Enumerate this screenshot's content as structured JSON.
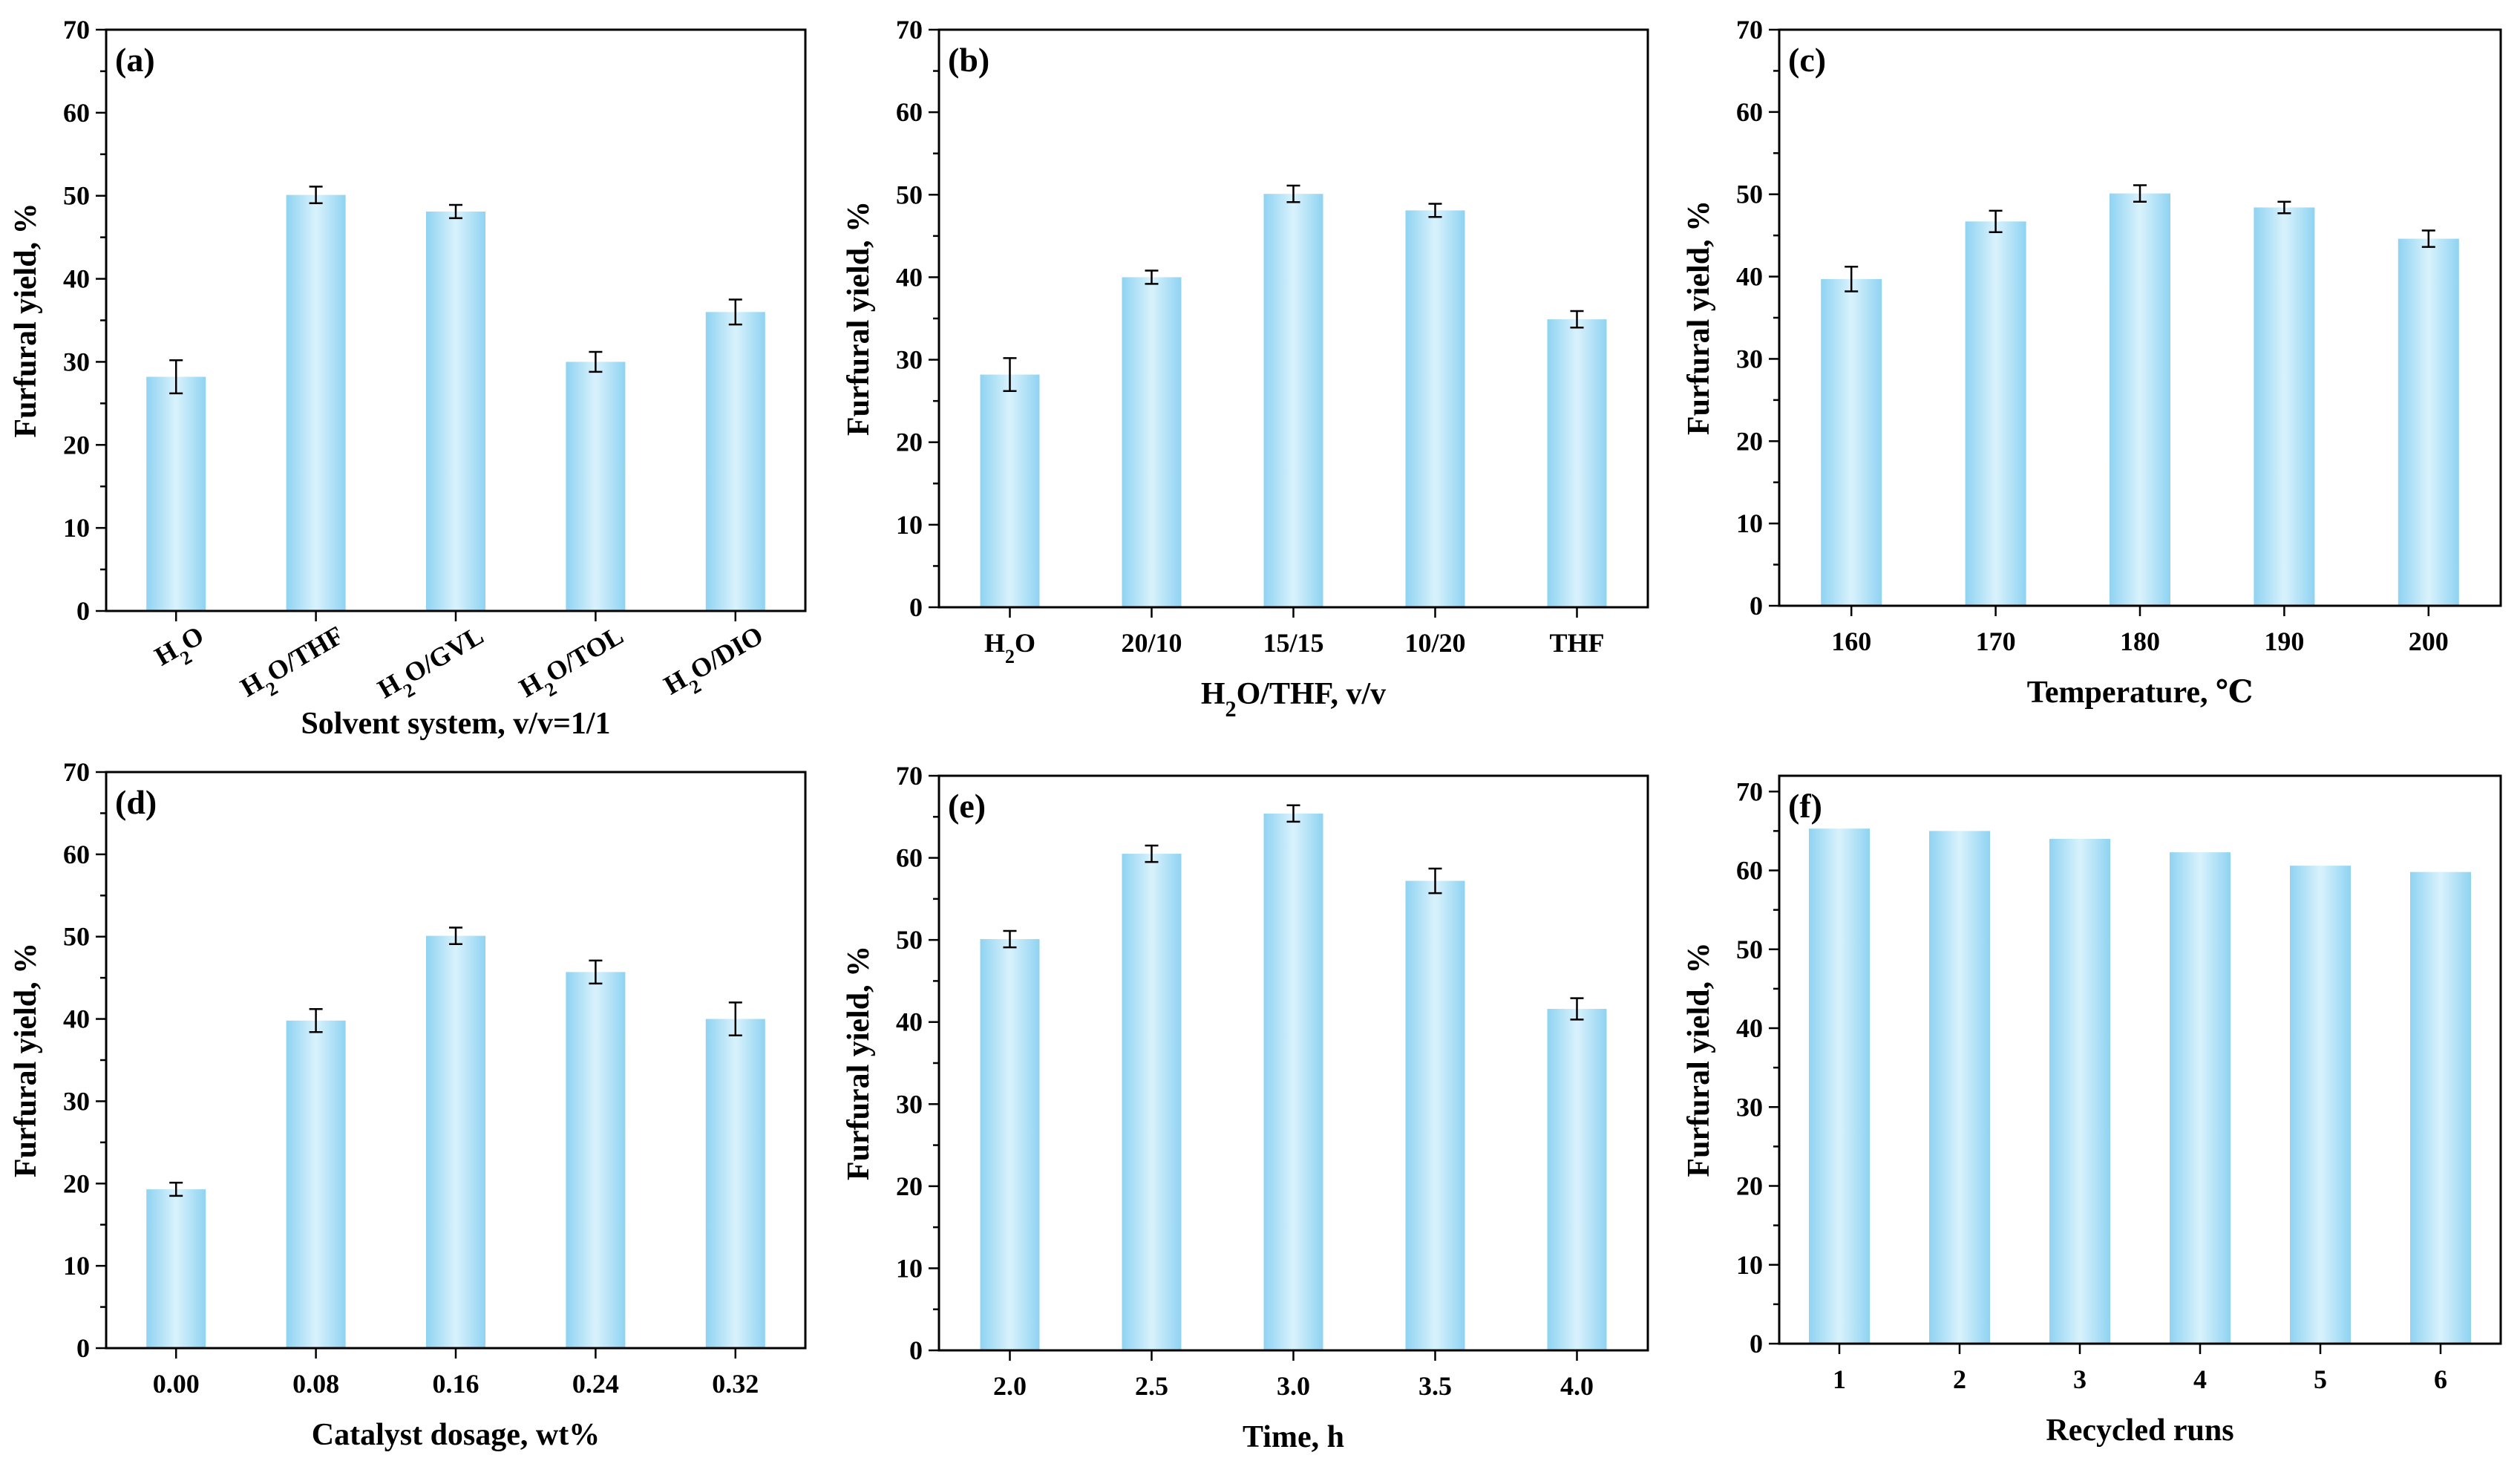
{
  "chart_data": [
    {
      "panel_label": "(a)",
      "type": "bar",
      "categories": [
        {
          "main": "H",
          "sub": "2",
          "rest": "O"
        },
        {
          "main": "H",
          "sub": "2",
          "rest": "O/THF"
        },
        {
          "main": "H",
          "sub": "2",
          "rest": "O/GVL"
        },
        {
          "main": "H",
          "sub": "2",
          "rest": "O/TOL"
        },
        {
          "main": "H",
          "sub": "2",
          "rest": "O/DIO"
        }
      ],
      "values": [
        28.2,
        50.1,
        48.1,
        30.0,
        36.0
      ],
      "errors": [
        2.0,
        1.0,
        0.8,
        1.2,
        1.5
      ],
      "xlabel": "Solvent system, v/v=1/1",
      "ylabel": "Furfural yield, %",
      "ylim": [
        0,
        70
      ],
      "yticks": [
        "0",
        "10",
        "20",
        "30",
        "40",
        "50",
        "60",
        "70"
      ],
      "grid": false
    },
    {
      "panel_label": "(b)",
      "type": "bar",
      "categories": [
        {
          "main": "H",
          "sub": "2",
          "rest": "O"
        },
        {
          "main": "20/10",
          "sub": "",
          "rest": ""
        },
        {
          "main": "15/15",
          "sub": "",
          "rest": ""
        },
        {
          "main": "10/20",
          "sub": "",
          "rest": ""
        },
        {
          "main": "THF",
          "sub": "",
          "rest": ""
        }
      ],
      "values": [
        28.2,
        40.0,
        50.1,
        48.1,
        34.9
      ],
      "errors": [
        2.0,
        0.8,
        1.0,
        0.8,
        1.0
      ],
      "xlabel": {
        "main": "H",
        "sub": "2",
        "rest": "O/THF, v/v"
      },
      "ylabel": "Furfural yield, %",
      "ylim": [
        0,
        70
      ],
      "yticks": [
        "0",
        "10",
        "20",
        "30",
        "40",
        "50",
        "60",
        "70"
      ],
      "grid": false
    },
    {
      "panel_label": "(c)",
      "type": "bar",
      "categories": [
        {
          "main": "160",
          "sub": "",
          "rest": ""
        },
        {
          "main": "170",
          "sub": "",
          "rest": ""
        },
        {
          "main": "180",
          "sub": "",
          "rest": ""
        },
        {
          "main": "190",
          "sub": "",
          "rest": ""
        },
        {
          "main": "200",
          "sub": "",
          "rest": ""
        }
      ],
      "values": [
        39.7,
        46.7,
        50.1,
        48.4,
        44.6
      ],
      "errors": [
        1.5,
        1.3,
        1.0,
        0.7,
        1.0
      ],
      "xlabel": "Temperature, ℃",
      "ylabel": "Furfural yield, %",
      "ylim": [
        0,
        70
      ],
      "yticks": [
        "0",
        "10",
        "20",
        "30",
        "40",
        "50",
        "60",
        "70"
      ],
      "grid": false
    },
    {
      "panel_label": "(d)",
      "type": "bar",
      "categories": [
        {
          "main": "0.00",
          "sub": "",
          "rest": ""
        },
        {
          "main": "0.08",
          "sub": "",
          "rest": ""
        },
        {
          "main": "0.16",
          "sub": "",
          "rest": ""
        },
        {
          "main": "0.24",
          "sub": "",
          "rest": ""
        },
        {
          "main": "0.32",
          "sub": "",
          "rest": ""
        }
      ],
      "values": [
        19.3,
        39.8,
        50.1,
        45.7,
        40.0
      ],
      "errors": [
        0.8,
        1.4,
        1.0,
        1.4,
        2.0
      ],
      "xlabel": "Catalyst dosage, wt%",
      "ylabel": "Furfural yield, %",
      "ylim": [
        0,
        70
      ],
      "yticks": [
        "0",
        "10",
        "20",
        "30",
        "40",
        "50",
        "60",
        "70"
      ],
      "grid": false
    },
    {
      "panel_label": "(e)",
      "type": "bar",
      "categories": [
        {
          "main": "2.0",
          "sub": "",
          "rest": ""
        },
        {
          "main": "2.5",
          "sub": "",
          "rest": ""
        },
        {
          "main": "3.0",
          "sub": "",
          "rest": ""
        },
        {
          "main": "3.5",
          "sub": "",
          "rest": ""
        },
        {
          "main": "4.0",
          "sub": "",
          "rest": ""
        }
      ],
      "values": [
        50.1,
        60.5,
        65.4,
        57.2,
        41.6
      ],
      "errors": [
        1.0,
        1.0,
        1.0,
        1.5,
        1.3
      ],
      "xlabel": "Time, h",
      "ylabel": "Furfural yield, %",
      "ylim": [
        0,
        70
      ],
      "yticks": [
        "0",
        "10",
        "20",
        "30",
        "40",
        "50",
        "60",
        "70"
      ],
      "grid": false
    },
    {
      "panel_label": "(f)",
      "type": "bar",
      "categories": [
        {
          "main": "1",
          "sub": "",
          "rest": ""
        },
        {
          "main": "2",
          "sub": "",
          "rest": ""
        },
        {
          "main": "3",
          "sub": "",
          "rest": ""
        },
        {
          "main": "4",
          "sub": "",
          "rest": ""
        },
        {
          "main": "5",
          "sub": "",
          "rest": ""
        },
        {
          "main": "6",
          "sub": "",
          "rest": ""
        }
      ],
      "values": [
        65.3,
        65.0,
        64.0,
        62.3,
        60.6,
        59.8
      ],
      "errors": [],
      "xlabel": "Recycled runs",
      "ylabel": "Furfural yield, %",
      "ylim": [
        0,
        72
      ],
      "yticks": [
        "0",
        "10",
        "20",
        "30",
        "40",
        "50",
        "60",
        "70"
      ],
      "grid": false
    }
  ],
  "colors": {
    "bar_edge": "#8fd3f2",
    "bar_center": "#d9f2fc",
    "axis": "#000000"
  }
}
